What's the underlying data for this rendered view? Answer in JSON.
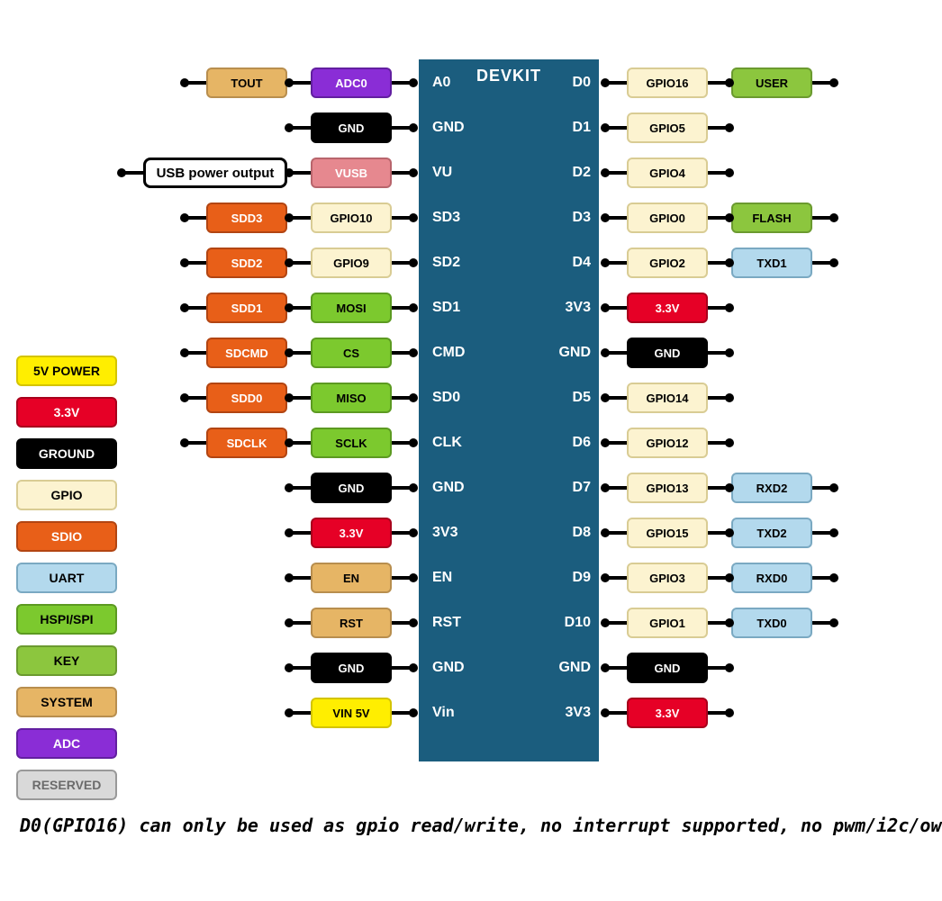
{
  "board_title": "DEVKIT",
  "colors": {
    "chip_bg": "#1b5d7e",
    "chip_text": "#ffffff",
    "yellow_5v": {
      "bg": "#ffee00",
      "fg": "#000000",
      "border": "#d4c400"
    },
    "red_3v3": {
      "bg": "#e60026",
      "fg": "#ffffff",
      "border": "#a8001c"
    },
    "black_gnd": {
      "bg": "#000000",
      "fg": "#ffffff",
      "border": "#000000"
    },
    "cream_gpio": {
      "bg": "#fcf3d0",
      "fg": "#000000",
      "border": "#d9cc94"
    },
    "orange_sdio": {
      "bg": "#e85f18",
      "fg": "#ffffff",
      "border": "#b24512"
    },
    "lightblue_uart": {
      "bg": "#b3d9ed",
      "fg": "#000000",
      "border": "#7aa9c2"
    },
    "lime_hspi": {
      "bg": "#7cc92e",
      "fg": "#000000",
      "border": "#5c9a21"
    },
    "green_key": {
      "bg": "#8cc63e",
      "fg": "#000000",
      "border": "#6b9a2f"
    },
    "tan_system": {
      "bg": "#e6b565",
      "fg": "#000000",
      "border": "#b88e4e"
    },
    "purple_adc": {
      "bg": "#8a2dd6",
      "fg": "#ffffff",
      "border": "#621fa0"
    },
    "grey_reserved": {
      "bg": "#d9d9d9",
      "fg": "#6b6b6b",
      "border": "#999999"
    },
    "pink_vusb": {
      "bg": "#e6888f",
      "fg": "#ffffff",
      "border": "#b8656c"
    }
  },
  "legend": [
    {
      "text": "5V POWER",
      "color": "yellow_5v"
    },
    {
      "text": "3.3V",
      "color": "red_3v3"
    },
    {
      "text": "GROUND",
      "color": "black_gnd"
    },
    {
      "text": "GPIO",
      "color": "cream_gpio"
    },
    {
      "text": "SDIO",
      "color": "orange_sdio"
    },
    {
      "text": "UART",
      "color": "lightblue_uart"
    },
    {
      "text": "HSPI/SPI",
      "color": "lime_hspi"
    },
    {
      "text": "KEY",
      "color": "green_key"
    },
    {
      "text": "SYSTEM",
      "color": "tan_system"
    },
    {
      "text": "ADC",
      "color": "purple_adc"
    },
    {
      "text": "RESERVED",
      "color": "grey_reserved"
    }
  ],
  "left_pins": [
    {
      "chip": "A0",
      "chain": [
        {
          "text": "ADC0",
          "color": "purple_adc"
        },
        {
          "text": "TOUT",
          "color": "tan_system"
        }
      ]
    },
    {
      "chip": "GND",
      "chain": [
        {
          "text": "GND",
          "color": "black_gnd"
        }
      ]
    },
    {
      "chip": "VU",
      "chain": [
        {
          "text": "VUSB",
          "color": "pink_vusb"
        },
        {
          "text": "USB power output",
          "color": "usb"
        }
      ]
    },
    {
      "chip": "SD3",
      "chain": [
        {
          "text": "GPIO10",
          "color": "cream_gpio"
        },
        {
          "text": "SDD3",
          "color": "orange_sdio"
        }
      ]
    },
    {
      "chip": "SD2",
      "chain": [
        {
          "text": "GPIO9",
          "color": "cream_gpio"
        },
        {
          "text": "SDD2",
          "color": "orange_sdio"
        }
      ]
    },
    {
      "chip": "SD1",
      "chain": [
        {
          "text": "MOSI",
          "color": "lime_hspi"
        },
        {
          "text": "SDD1",
          "color": "orange_sdio"
        }
      ]
    },
    {
      "chip": "CMD",
      "chain": [
        {
          "text": "CS",
          "color": "lime_hspi"
        },
        {
          "text": "SDCMD",
          "color": "orange_sdio"
        }
      ]
    },
    {
      "chip": "SD0",
      "chain": [
        {
          "text": "MISO",
          "color": "lime_hspi"
        },
        {
          "text": "SDD0",
          "color": "orange_sdio"
        }
      ]
    },
    {
      "chip": "CLK",
      "chain": [
        {
          "text": "SCLK",
          "color": "lime_hspi"
        },
        {
          "text": "SDCLK",
          "color": "orange_sdio"
        }
      ]
    },
    {
      "chip": "GND",
      "chain": [
        {
          "text": "GND",
          "color": "black_gnd"
        }
      ]
    },
    {
      "chip": "3V3",
      "chain": [
        {
          "text": "3.3V",
          "color": "red_3v3"
        }
      ]
    },
    {
      "chip": "EN",
      "chain": [
        {
          "text": "EN",
          "color": "tan_system"
        }
      ]
    },
    {
      "chip": "RST",
      "chain": [
        {
          "text": "RST",
          "color": "tan_system"
        }
      ]
    },
    {
      "chip": "GND",
      "chain": [
        {
          "text": "GND",
          "color": "black_gnd"
        }
      ]
    },
    {
      "chip": "Vin",
      "chain": [
        {
          "text": "VIN 5V",
          "color": "yellow_5v"
        }
      ]
    }
  ],
  "right_pins": [
    {
      "chip": "D0",
      "chain": [
        {
          "text": "GPIO16",
          "color": "cream_gpio"
        },
        {
          "text": "USER",
          "color": "green_key"
        }
      ]
    },
    {
      "chip": "D1",
      "chain": [
        {
          "text": "GPIO5",
          "color": "cream_gpio"
        }
      ]
    },
    {
      "chip": "D2",
      "chain": [
        {
          "text": "GPIO4",
          "color": "cream_gpio"
        }
      ]
    },
    {
      "chip": "D3",
      "chain": [
        {
          "text": "GPIO0",
          "color": "cream_gpio"
        },
        {
          "text": "FLASH",
          "color": "green_key"
        }
      ]
    },
    {
      "chip": "D4",
      "chain": [
        {
          "text": "GPIO2",
          "color": "cream_gpio"
        },
        {
          "text": "TXD1",
          "color": "lightblue_uart"
        }
      ]
    },
    {
      "chip": "3V3",
      "chain": [
        {
          "text": "3.3V",
          "color": "red_3v3"
        }
      ]
    },
    {
      "chip": "GND",
      "chain": [
        {
          "text": "GND",
          "color": "black_gnd"
        }
      ]
    },
    {
      "chip": "D5",
      "chain": [
        {
          "text": "GPIO14",
          "color": "cream_gpio"
        }
      ]
    },
    {
      "chip": "D6",
      "chain": [
        {
          "text": "GPIO12",
          "color": "cream_gpio"
        }
      ]
    },
    {
      "chip": "D7",
      "chain": [
        {
          "text": "GPIO13",
          "color": "cream_gpio"
        },
        {
          "text": "RXD2",
          "color": "lightblue_uart"
        }
      ]
    },
    {
      "chip": "D8",
      "chain": [
        {
          "text": "GPIO15",
          "color": "cream_gpio"
        },
        {
          "text": "TXD2",
          "color": "lightblue_uart"
        }
      ]
    },
    {
      "chip": "D9",
      "chain": [
        {
          "text": "GPIO3",
          "color": "cream_gpio"
        },
        {
          "text": "RXD0",
          "color": "lightblue_uart"
        }
      ]
    },
    {
      "chip": "D10",
      "chain": [
        {
          "text": "GPIO1",
          "color": "cream_gpio"
        },
        {
          "text": "TXD0",
          "color": "lightblue_uart"
        }
      ]
    },
    {
      "chip": "GND",
      "chain": [
        {
          "text": "GND",
          "color": "black_gnd"
        }
      ]
    },
    {
      "chip": "3V3",
      "chain": [
        {
          "text": "3.3V",
          "color": "red_3v3"
        }
      ]
    }
  ],
  "footnote": "D0(GPIO16) can only be used as gpio read/write, no interrupt supported, no pwm/i2c/ow"
}
